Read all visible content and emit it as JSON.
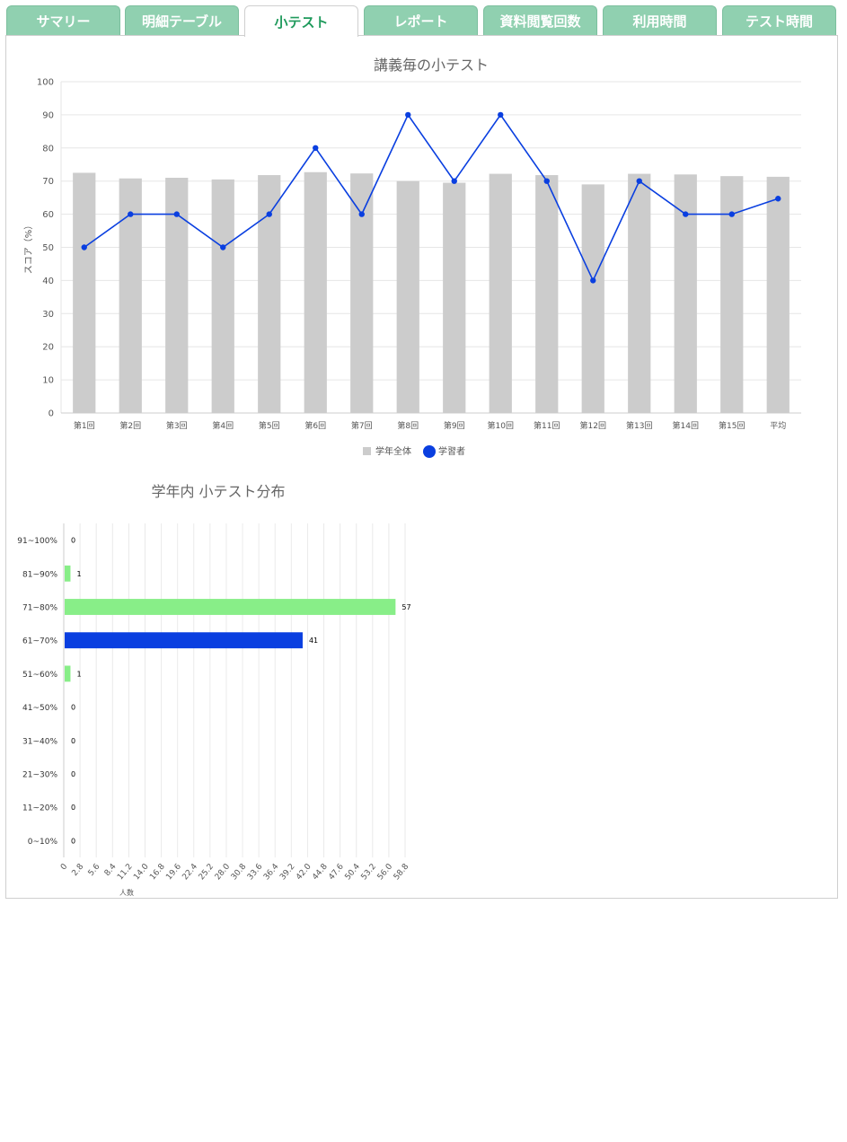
{
  "tabs": [
    {
      "label": "サマリー",
      "active": false
    },
    {
      "label": "明細テーブル",
      "active": false
    },
    {
      "label": "小テスト",
      "active": true
    },
    {
      "label": "レポート",
      "active": false
    },
    {
      "label": "資料閲覧回数",
      "active": false
    },
    {
      "label": "利用時間",
      "active": false
    },
    {
      "label": "テスト時間",
      "active": false
    }
  ],
  "colors": {
    "tab_bg": "#90d0b0",
    "tab_active_text": "#1f9a5c",
    "bar_gray": "#cccccc",
    "line_blue": "#0a3fe0",
    "bar_green": "#88ee88",
    "bar_blue": "#0a3fe0"
  },
  "chart_data": [
    {
      "type": "bar+line",
      "title": "講義毎の小テスト",
      "ylabel": "スコア（%）",
      "ylim": [
        0,
        100
      ],
      "yticks": [
        0,
        10,
        20,
        30,
        40,
        50,
        60,
        70,
        80,
        90,
        100
      ],
      "grid": true,
      "legend": "bottom",
      "categories": [
        "第1回",
        "第2回",
        "第3回",
        "第4回",
        "第5回",
        "第6回",
        "第7回",
        "第8回",
        "第9回",
        "第10回",
        "第11回",
        "第12回",
        "第13回",
        "第14回",
        "第15回",
        "平均"
      ],
      "series": [
        {
          "name": "学年全体",
          "kind": "bar",
          "values": [
            72.5,
            70.8,
            71.0,
            70.5,
            71.8,
            72.7,
            72.3,
            70.0,
            69.5,
            72.2,
            71.8,
            69.0,
            72.2,
            72.0,
            71.5,
            71.3
          ]
        },
        {
          "name": "学習者",
          "kind": "line",
          "values": [
            50,
            60,
            60,
            50,
            60,
            80,
            60,
            90,
            70,
            90,
            70,
            40,
            70,
            60,
            60,
            64.7
          ]
        }
      ]
    },
    {
      "type": "bar",
      "orientation": "horizontal",
      "title": "学年内 小テスト分布",
      "xlabel": "人数",
      "xlim": [
        0,
        58.8
      ],
      "xticks": [
        "0",
        "2.8",
        "5.6",
        "8.4",
        "11.2",
        "14.0",
        "16.8",
        "19.6",
        "22.4",
        "25.2",
        "28.0",
        "30.8",
        "33.6",
        "36.4",
        "39.2",
        "42.0",
        "44.8",
        "47.6",
        "50.4",
        "53.2",
        "56.0",
        "58.8"
      ],
      "grid": true,
      "categories": [
        "91~100%",
        "81~90%",
        "71~80%",
        "61~70%",
        "51~60%",
        "41~50%",
        "31~40%",
        "21~30%",
        "11~20%",
        "0~10%"
      ],
      "values": [
        0,
        1,
        57,
        41,
        1,
        0,
        0,
        0,
        0,
        0
      ],
      "value_labels": [
        "0",
        "1",
        "57",
        "41",
        "1",
        "0",
        "0",
        "0",
        "0",
        "0"
      ],
      "highlight_index": 3
    }
  ]
}
